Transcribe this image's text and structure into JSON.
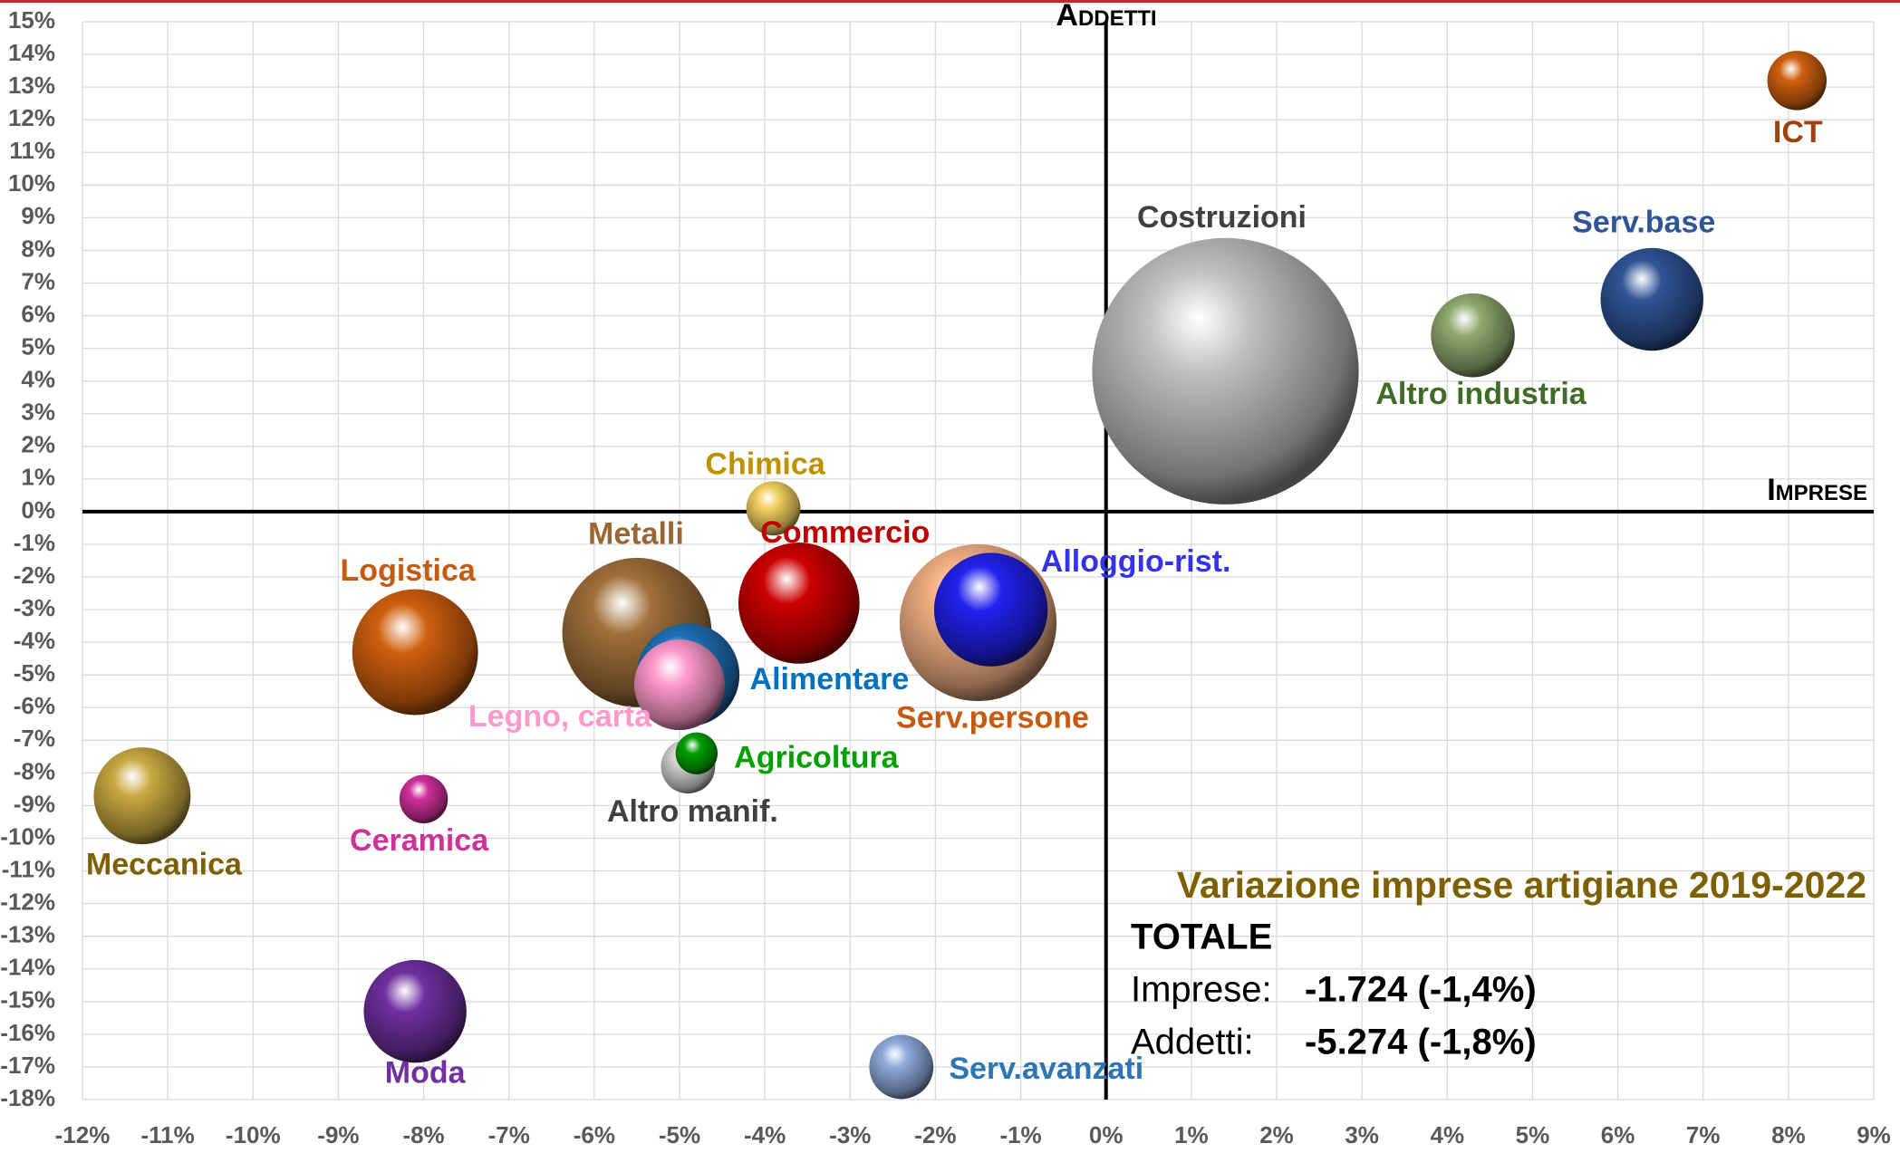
{
  "chart_data": {
    "type": "bubble",
    "xlabel": "Imprese",
    "ylabel": "Addetti",
    "xlim": [
      -12,
      9
    ],
    "ylim": [
      -18,
      15
    ],
    "xticks": [
      {
        "value": -12,
        "label": "-12%"
      },
      {
        "value": -11,
        "label": "-11%"
      },
      {
        "value": -10,
        "label": "-10%"
      },
      {
        "value": -9,
        "label": "-9%"
      },
      {
        "value": -8,
        "label": "-8%"
      },
      {
        "value": -7,
        "label": "-7%"
      },
      {
        "value": -6,
        "label": "-6%"
      },
      {
        "value": -5,
        "label": "-5%"
      },
      {
        "value": -4,
        "label": "-4%"
      },
      {
        "value": -3,
        "label": "-3%"
      },
      {
        "value": -2,
        "label": "-2%"
      },
      {
        "value": -1,
        "label": "-1%"
      },
      {
        "value": 0,
        "label": "0%"
      },
      {
        "value": 1,
        "label": "1%"
      },
      {
        "value": 2,
        "label": "2%"
      },
      {
        "value": 3,
        "label": "3%"
      },
      {
        "value": 4,
        "label": "4%"
      },
      {
        "value": 5,
        "label": "5%"
      },
      {
        "value": 6,
        "label": "6%"
      },
      {
        "value": 7,
        "label": "7%"
      },
      {
        "value": 8,
        "label": "8%"
      },
      {
        "value": 9,
        "label": "9%"
      }
    ],
    "yticks": [
      {
        "value": 15,
        "label": "15%"
      },
      {
        "value": 14,
        "label": "14%"
      },
      {
        "value": 13,
        "label": "13%"
      },
      {
        "value": 12,
        "label": "12%"
      },
      {
        "value": 11,
        "label": "11%"
      },
      {
        "value": 10,
        "label": "10%"
      },
      {
        "value": 9,
        "label": "9%"
      },
      {
        "value": 8,
        "label": "8%"
      },
      {
        "value": 7,
        "label": "7%"
      },
      {
        "value": 6,
        "label": "6%"
      },
      {
        "value": 5,
        "label": "5%"
      },
      {
        "value": 4,
        "label": "4%"
      },
      {
        "value": 3,
        "label": "3%"
      },
      {
        "value": 2,
        "label": "2%"
      },
      {
        "value": 1,
        "label": "1%"
      },
      {
        "value": 0,
        "label": "0%"
      },
      {
        "value": -1,
        "label": "-1%"
      },
      {
        "value": -2,
        "label": "-2%"
      },
      {
        "value": -3,
        "label": "-3%"
      },
      {
        "value": -4,
        "label": "-4%"
      },
      {
        "value": -5,
        "label": "-5%"
      },
      {
        "value": -6,
        "label": "-6%"
      },
      {
        "value": -7,
        "label": "-7%"
      },
      {
        "value": -8,
        "label": "-8%"
      },
      {
        "value": -9,
        "label": "-9%"
      },
      {
        "value": -10,
        "label": "-10%"
      },
      {
        "value": -11,
        "label": "-11%"
      },
      {
        "value": -12,
        "label": "-12%"
      },
      {
        "value": -13,
        "label": "-13%"
      },
      {
        "value": -14,
        "label": "-14%"
      },
      {
        "value": -15,
        "label": "-15%"
      },
      {
        "value": -16,
        "label": "-16%"
      },
      {
        "value": -17,
        "label": "-17%"
      },
      {
        "value": -18,
        "label": "-18%"
      }
    ],
    "grid": true,
    "points": [
      {
        "name": "Costruzioni",
        "color": "#bfbfbf",
        "label_color": "#404040",
        "x": 1.4,
        "y": 4.3,
        "size": 121
      },
      {
        "name": "Serv.persone",
        "color": "#f4b183",
        "label_color": "#c55a11",
        "x": -1.5,
        "y": -3.4,
        "size": 42
      },
      {
        "name": "Metalli",
        "color": "#a0703a",
        "label_color": "#996633",
        "x": -5.5,
        "y": -3.7,
        "size": 38
      },
      {
        "name": "Logistica",
        "color": "#d0600f",
        "label_color": "#c55a11",
        "x": -8.1,
        "y": -4.3,
        "size": 27
      },
      {
        "name": "Commercio",
        "color": "#cc0000",
        "label_color": "#c00000",
        "x": -3.6,
        "y": -2.8,
        "size": 25
      },
      {
        "name": "Alloggio-rist.",
        "color": "#2222ee",
        "label_color": "#3333ee",
        "x": -1.35,
        "y": -3.0,
        "size": 22
      },
      {
        "name": "Alimentare",
        "color": "#1f6fb5",
        "label_color": "#0070c0",
        "x": -4.9,
        "y": -5.0,
        "size": 18
      },
      {
        "name": "Legno, carta",
        "color": "#ff99cc",
        "label_color": "#ff99cc",
        "x": -5.0,
        "y": -5.3,
        "size": 14
      },
      {
        "name": "Moda",
        "color": "#7030a0",
        "label_color": "#7030a0",
        "x": -8.1,
        "y": -15.3,
        "size": 18
      },
      {
        "name": "Serv.base",
        "color": "#2f5597",
        "label_color": "#2f5597",
        "x": 6.4,
        "y": 6.5,
        "size": 18
      },
      {
        "name": "Meccanica",
        "color": "#c8a840",
        "label_color": "#7f6000",
        "x": -11.3,
        "y": -8.7,
        "size": 16
      },
      {
        "name": "Altro industria",
        "color": "#8faa6e",
        "label_color": "#3f6c27",
        "x": 4.3,
        "y": 5.4,
        "size": 12
      },
      {
        "name": "Serv.avanzati",
        "color": "#8eaadb",
        "label_color": "#2e75b6",
        "x": -2.4,
        "y": -17.0,
        "size": 7
      },
      {
        "name": "ICT",
        "color": "#d0600f",
        "label_color": "#a0410d",
        "x": 8.1,
        "y": 13.2,
        "size": 6
      },
      {
        "name": "Altro manif.",
        "color": "#d0d0d0",
        "label_color": "#404040",
        "x": -4.9,
        "y": -7.8,
        "size": 5
      },
      {
        "name": "Chimica",
        "color": "#f2d060",
        "label_color": "#bf9000",
        "x": -3.9,
        "y": 0.1,
        "size": 5
      },
      {
        "name": "Ceramica",
        "color": "#d0309a",
        "label_color": "#cc3399",
        "x": -8.0,
        "y": -8.8,
        "size": 4
      },
      {
        "name": "Agricoltura",
        "color": "#00a000",
        "label_color": "#00a000",
        "x": -4.8,
        "y": -7.4,
        "size": 3
      }
    ],
    "annotation": {
      "title": "Variazione imprese artigiane 2019-2022",
      "heading": "TOTALE",
      "lines": [
        {
          "label": "Imprese:",
          "value": "-1.724 (-1,4%)"
        },
        {
          "label": "Addetti:",
          "value": "-5.274 (-1,8%)"
        }
      ]
    }
  }
}
